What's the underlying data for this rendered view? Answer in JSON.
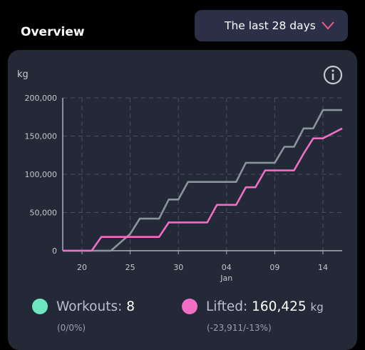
{
  "header": {
    "title": "Overview",
    "range_label": "The last 28 days"
  },
  "chart_data": {
    "type": "line",
    "ylabel": "kg",
    "ylim": [
      0,
      200000
    ],
    "yticks": [
      0,
      50000,
      100000,
      150000,
      200000
    ],
    "ytick_labels": [
      "0",
      "50,000",
      "100,000",
      "150,000",
      "200,000"
    ],
    "xlim": [
      "2023-12-18",
      "2024-01-16"
    ],
    "xticks": [
      "2023-12-20",
      "2023-12-25",
      "2023-12-30",
      "2024-01-04",
      "2024-01-09",
      "2024-01-14"
    ],
    "xtick_labels": [
      "20",
      "25",
      "30",
      "04",
      "09",
      "14"
    ],
    "xtick_sublabel": "Jan",
    "grid": true,
    "series": [
      {
        "color": "#8a949f",
        "points": [
          [
            "2023-12-18",
            0
          ],
          [
            "2023-12-23",
            0
          ],
          [
            "2023-12-25",
            22000
          ],
          [
            "2023-12-26",
            42000
          ],
          [
            "2023-12-28",
            42000
          ],
          [
            "2023-12-29",
            67000
          ],
          [
            "2023-12-30",
            67000
          ],
          [
            "2023-12-31",
            90000
          ],
          [
            "2024-01-03",
            90000
          ],
          [
            "2024-01-05",
            90000
          ],
          [
            "2024-01-06",
            115000
          ],
          [
            "2024-01-09",
            115000
          ],
          [
            "2024-01-10",
            136000
          ],
          [
            "2024-01-11",
            136000
          ],
          [
            "2024-01-12",
            160000
          ],
          [
            "2024-01-13",
            160000
          ],
          [
            "2024-01-14",
            184000
          ],
          [
            "2024-01-16",
            184000
          ]
        ]
      },
      {
        "color": "#f06ec4",
        "points": [
          [
            "2023-12-18",
            0
          ],
          [
            "2023-12-21",
            0
          ],
          [
            "2023-12-22",
            18000
          ],
          [
            "2023-12-28",
            18000
          ],
          [
            "2023-12-29",
            37000
          ],
          [
            "2024-01-02",
            37000
          ],
          [
            "2024-01-03",
            60000
          ],
          [
            "2024-01-05",
            60000
          ],
          [
            "2024-01-06",
            83000
          ],
          [
            "2024-01-07",
            83000
          ],
          [
            "2024-01-08",
            105000
          ],
          [
            "2024-01-11",
            105000
          ],
          [
            "2024-01-12",
            127000
          ],
          [
            "2024-01-13",
            147000
          ],
          [
            "2024-01-14",
            147000
          ],
          [
            "2024-01-16",
            160000
          ]
        ]
      }
    ]
  },
  "stats": {
    "workouts": {
      "label": "Workouts:",
      "value": "8",
      "sub": "(0/0%)",
      "color": "#6ee7c0"
    },
    "lifted": {
      "label": "Lifted:",
      "value": "160,425",
      "unit": "kg",
      "sub": "(-23,911/-13%)",
      "color": "#f06ec4"
    }
  },
  "icons": {
    "range_toggle": "chevron-down-icon",
    "info": "info-icon"
  },
  "colors": {
    "background": "#000000",
    "card": "#242938",
    "dropdown": "#2b2f48",
    "accent": "#f25a7e"
  }
}
